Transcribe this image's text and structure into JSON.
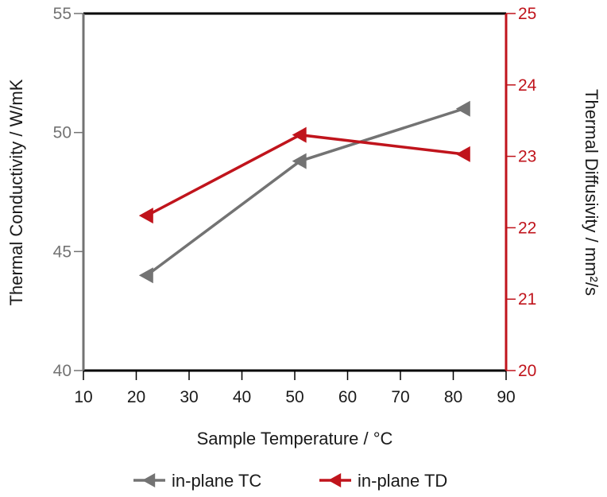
{
  "chart_data": {
    "type": "line",
    "xlabel": "Sample Temperature / °C",
    "ylabel": "Thermal Conductivity / W/mK",
    "y2label": "Thermal Diffusivity / mm²/s",
    "xlim": [
      10,
      90
    ],
    "ylim": [
      40,
      55
    ],
    "y2lim": [
      20,
      25
    ],
    "x_ticks": [
      10,
      20,
      30,
      40,
      50,
      60,
      70,
      80,
      90
    ],
    "y_ticks": [
      40,
      45,
      50,
      55
    ],
    "y2_ticks": [
      20,
      21,
      22,
      23,
      24,
      25
    ],
    "grid": false,
    "legend_position": "bottom",
    "series": [
      {
        "name": "in-plane TC",
        "axis": "left",
        "color": "#737373",
        "marker": "left-triangle",
        "x": [
          22,
          51,
          82
        ],
        "y": [
          44.0,
          48.8,
          51.0
        ]
      },
      {
        "name": "in-plane TD",
        "axis": "right",
        "color": "#c0141c",
        "marker": "left-triangle",
        "x": [
          22,
          51,
          82
        ],
        "y": [
          22.17,
          23.3,
          23.03
        ]
      }
    ]
  }
}
